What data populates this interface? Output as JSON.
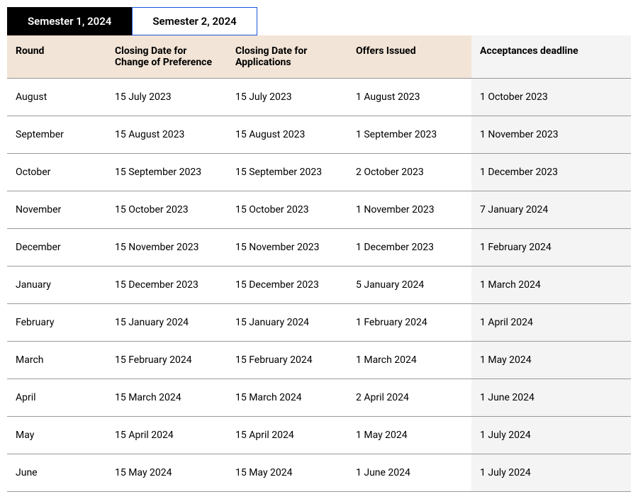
{
  "tabs": [
    {
      "label": "Semester 1, 2024",
      "active": true
    },
    {
      "label": "Semester 2, 2024",
      "active": false
    }
  ],
  "table": {
    "columns": [
      "Round",
      "Closing Date for Change of Preference",
      "Closing Date for Applications",
      "Offers Issued",
      "Acceptances deadline"
    ],
    "rows": [
      [
        "August",
        "15 July 2023",
        "15 July 2023",
        "1 August 2023",
        "1 October 2023"
      ],
      [
        "September",
        "15 August 2023",
        "15 August 2023",
        "1 September 2023",
        "1 November 2023"
      ],
      [
        "October",
        "15 September 2023",
        "15 September 2023",
        "2 October 2023",
        "1 December 2023"
      ],
      [
        "November",
        "15 October 2023",
        "15 October 2023",
        "1 November 2023",
        "7 January 2024"
      ],
      [
        "December",
        "15 November 2023",
        "15 November 2023",
        "1 December 2023",
        "1 February 2024"
      ],
      [
        "January",
        "15 December 2023",
        "15 December 2023",
        "5 January 2024",
        "1 March 2024"
      ],
      [
        "February",
        "15 January 2024",
        "15 January 2024",
        "1 February 2024",
        "1 April 2024"
      ],
      [
        "March",
        "15 February 2024",
        "15 February 2024",
        "1 March 2024",
        "1 May 2024"
      ],
      [
        "April",
        "15 March 2024",
        "15 March 2024",
        "2 April 2024",
        "1 June 2024"
      ],
      [
        "May",
        "15 April 2024",
        "15 April 2024",
        "1 May 2024",
        "1 July 2024"
      ],
      [
        "June",
        "15 May 2024",
        "15 May 2024",
        "1 June 2024",
        "1 July 2024"
      ]
    ]
  },
  "colors": {
    "header_bg": "#f2e4d6",
    "last_col_bg": "#f4f4f4",
    "active_tab_bg": "#000000",
    "active_tab_text": "#ffffff",
    "inactive_tab_border": "#1a56db",
    "border_color": "#999999"
  }
}
